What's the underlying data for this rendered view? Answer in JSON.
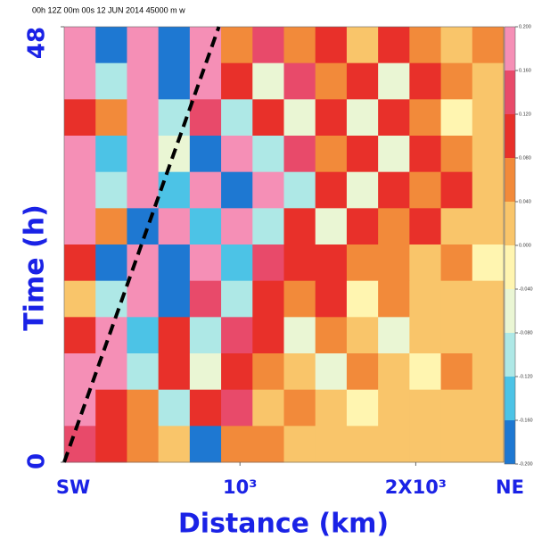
{
  "chart_data": {
    "type": "contour",
    "header": "00h   12Z 00m 00s   12 JUN 2014  45000 m        w",
    "xlabel": "Distance (km)",
    "ylabel": "Time (h)",
    "x_start_label": "SW",
    "x_end_label": "NE",
    "xlim": [
      0,
      2500
    ],
    "xticks": [
      {
        "value": 1000,
        "label": "10³"
      },
      {
        "value": 2000,
        "label": "2X10³"
      }
    ],
    "ylim": [
      0,
      48
    ],
    "yticks": [
      0,
      48
    ],
    "z": [
      [
        0.18,
        -0.17,
        0.18,
        -0.18,
        0.18,
        0.05,
        0.14,
        0.06,
        0.12,
        0.02,
        0.1,
        0.05,
        0.03,
        0.04
      ],
      [
        0.18,
        -0.1,
        0.17,
        -0.17,
        0.17,
        0.1,
        -0.05,
        0.13,
        0.05,
        0.1,
        -0.06,
        0.09,
        0.04,
        0.02
      ],
      [
        0.12,
        0.05,
        0.17,
        -0.12,
        0.15,
        -0.1,
        0.12,
        -0.05,
        0.12,
        -0.08,
        0.1,
        0.06,
        -0.03,
        0.03
      ],
      [
        0.17,
        -0.14,
        0.18,
        -0.05,
        -0.17,
        0.17,
        -0.12,
        0.13,
        0.06,
        0.12,
        -0.08,
        0.1,
        0.04,
        0.0
      ],
      [
        0.18,
        -0.12,
        0.17,
        -0.15,
        0.16,
        -0.17,
        0.17,
        -0.1,
        0.12,
        -0.08,
        0.1,
        0.06,
        0.08,
        0.02
      ],
      [
        0.17,
        0.05,
        -0.17,
        0.18,
        -0.16,
        0.17,
        -0.12,
        0.12,
        -0.08,
        0.1,
        0.05,
        0.09,
        0.03,
        0.02
      ],
      [
        0.12,
        -0.17,
        0.18,
        -0.17,
        0.16,
        -0.15,
        0.13,
        0.08,
        0.1,
        0.04,
        0.07,
        0.02,
        0.06,
        -0.02
      ],
      [
        0.02,
        -0.1,
        0.17,
        -0.17,
        0.15,
        -0.12,
        0.1,
        0.05,
        0.08,
        -0.03,
        0.04,
        0.0,
        0.03,
        0.02
      ],
      [
        0.1,
        0.18,
        -0.15,
        0.12,
        -0.1,
        0.13,
        0.08,
        -0.06,
        0.07,
        0.02,
        -0.05,
        0.03,
        0.0,
        0.03
      ],
      [
        0.18,
        0.17,
        -0.12,
        0.1,
        -0.08,
        0.12,
        0.05,
        0.03,
        -0.04,
        0.04,
        0.02,
        -0.03,
        0.04,
        0.0
      ],
      [
        0.18,
        0.12,
        0.05,
        -0.1,
        0.08,
        0.14,
        0.03,
        0.04,
        0.02,
        -0.03,
        0.03,
        0.0,
        0.02,
        0.01
      ],
      [
        0.14,
        0.1,
        0.06,
        0.02,
        -0.17,
        0.06,
        0.04,
        0.02,
        0.03,
        0.02,
        0.0,
        0.02,
        0.03,
        0.01
      ]
    ],
    "colorbar": {
      "ticks": [
        {
          "value": -0.2,
          "label": "-0.200"
        },
        {
          "value": -0.16,
          "label": "-0.160"
        },
        {
          "value": -0.12,
          "label": "-0.120"
        },
        {
          "value": -0.08,
          "label": "-0.080"
        },
        {
          "value": -0.04,
          "label": "-0.040"
        },
        {
          "value": 0,
          "label": "0.000"
        },
        {
          "value": 0.04,
          "label": "0.040"
        },
        {
          "value": 0.08,
          "label": "0.080"
        },
        {
          "value": 0.12,
          "label": "0.120"
        },
        {
          "value": 0.16,
          "label": "0.160"
        },
        {
          "value": 0.2,
          "label": "0.200"
        }
      ],
      "colors": [
        "#1e78d2",
        "#4cc3e6",
        "#aee8e6",
        "#eaf6d4",
        "#fff5b0",
        "#f9c56a",
        "#f28a3a",
        "#e8302a",
        "#e84a6a",
        "#f58fb6"
      ]
    },
    "dashed_line": {
      "x": [
        0,
        880
      ],
      "y": [
        0,
        48
      ]
    }
  }
}
